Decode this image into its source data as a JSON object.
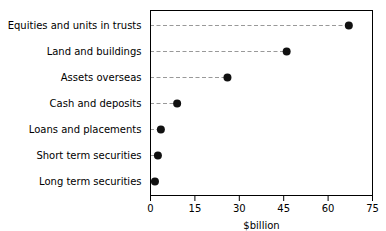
{
  "chart_data": {
    "type": "dot",
    "orientation": "horizontal",
    "categories": [
      "Long term securities",
      "Short term securities",
      "Loans and placements",
      "Cash and deposits",
      "Assets overseas",
      "Land and buildings",
      "Equities and units in trusts"
    ],
    "values": [
      1.5,
      2.5,
      3.5,
      9,
      26,
      46,
      67
    ],
    "xlim": [
      0,
      75
    ],
    "xticks": [
      0,
      15,
      30,
      45,
      60,
      75
    ],
    "xlabel": "$billion",
    "color": "#111111",
    "marker": "circle",
    "line_style": "dashed",
    "grid": false
  }
}
